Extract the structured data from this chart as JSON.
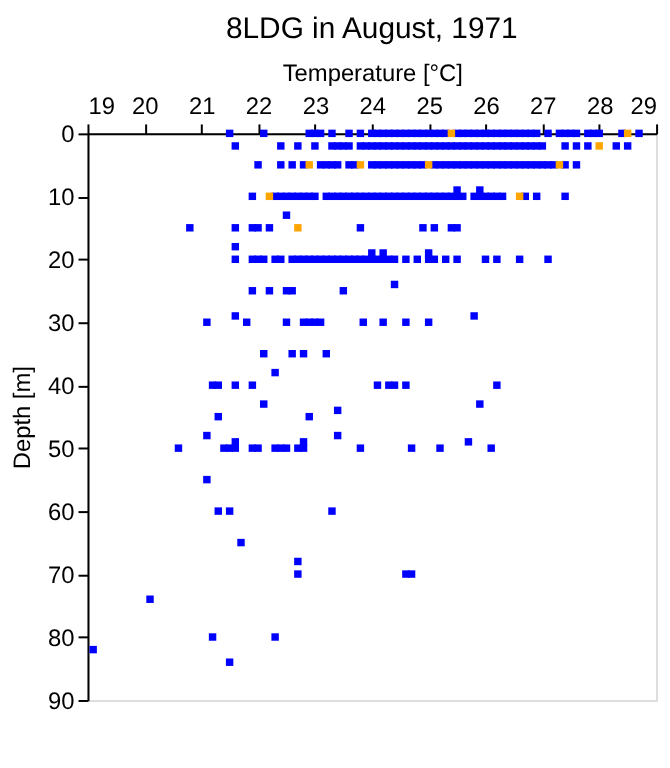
{
  "chart_data": {
    "type": "scatter",
    "title": "8LDG in August, 1971",
    "xlabel": "Temperature [°C]",
    "ylabel": "Depth [m]",
    "xlim": [
      19,
      29
    ],
    "xticks": [
      19,
      20,
      21,
      22,
      23,
      24,
      25,
      26,
      27,
      28,
      29
    ],
    "ylim": [
      90,
      0
    ],
    "yticks": [
      0,
      10,
      20,
      30,
      40,
      50,
      60,
      70,
      80,
      90
    ],
    "grid": false,
    "legend": false,
    "marker": "square",
    "series": [
      {
        "color": "#0000ff",
        "x": [
          21.5,
          22.1,
          22.9,
          23.0,
          23.1,
          23.3,
          23.6,
          23.8,
          24.0,
          24.1,
          24.2,
          24.3,
          24.4,
          24.5,
          24.6,
          24.7,
          24.8,
          24.9,
          25.0,
          25.1,
          25.2,
          25.3,
          25.5,
          25.6,
          25.7,
          25.8,
          25.9,
          26.0,
          26.1,
          26.2,
          26.3,
          26.4,
          26.5,
          26.6,
          26.7,
          26.8,
          26.9,
          27.1,
          27.3,
          27.4,
          27.5,
          27.6,
          27.8,
          27.9,
          28.0,
          28.4,
          28.7,
          21.6,
          22.4,
          22.7,
          23.0,
          23.3,
          23.4,
          23.5,
          23.6,
          23.8,
          23.9,
          24.0,
          24.1,
          24.2,
          24.3,
          24.4,
          24.5,
          24.6,
          24.7,
          24.8,
          24.9,
          25.0,
          25.1,
          25.2,
          25.3,
          25.4,
          25.5,
          25.6,
          25.7,
          25.8,
          25.9,
          26.0,
          26.1,
          26.2,
          26.3,
          26.4,
          26.5,
          26.6,
          26.7,
          26.8,
          26.9,
          27.0,
          27.4,
          27.6,
          27.8,
          28.3,
          28.5,
          22.0,
          22.4,
          22.6,
          22.8,
          23.1,
          23.2,
          23.3,
          23.4,
          23.6,
          23.7,
          24.0,
          24.1,
          24.2,
          24.3,
          24.4,
          24.5,
          24.6,
          24.7,
          24.8,
          24.9,
          25.1,
          25.2,
          25.3,
          25.4,
          25.5,
          25.6,
          25.7,
          25.8,
          25.9,
          26.0,
          26.1,
          26.2,
          26.3,
          26.4,
          26.5,
          26.6,
          26.7,
          26.8,
          26.9,
          27.0,
          27.1,
          27.2,
          27.4,
          27.6,
          25.5,
          25.9,
          21.9,
          22.3,
          22.4,
          22.5,
          22.6,
          22.7,
          22.8,
          22.9,
          23.0,
          23.2,
          23.3,
          23.4,
          23.5,
          23.6,
          23.7,
          23.8,
          23.9,
          24.0,
          24.1,
          24.2,
          24.3,
          24.4,
          24.5,
          24.6,
          24.7,
          24.8,
          24.9,
          25.0,
          25.1,
          25.2,
          25.3,
          25.4,
          25.5,
          25.6,
          25.8,
          25.9,
          26.0,
          26.1,
          26.2,
          26.3,
          26.7,
          26.9,
          27.4,
          22.5,
          20.8,
          21.6,
          21.9,
          22.0,
          22.2,
          23.8,
          24.9,
          25.1,
          25.4,
          25.5,
          21.6,
          24.0,
          24.2,
          25.0,
          21.6,
          21.9,
          22.0,
          22.1,
          22.3,
          22.4,
          22.6,
          22.7,
          22.8,
          22.9,
          23.0,
          23.1,
          23.2,
          23.3,
          23.4,
          23.5,
          23.6,
          23.7,
          23.8,
          23.9,
          24.0,
          24.1,
          24.2,
          24.3,
          24.4,
          24.6,
          24.8,
          25.0,
          25.1,
          25.3,
          25.5,
          26.0,
          26.2,
          26.6,
          27.1,
          24.4,
          21.9,
          22.2,
          22.5,
          22.6,
          23.5,
          21.6,
          25.8,
          21.1,
          21.8,
          22.5,
          22.8,
          22.9,
          23.0,
          23.1,
          23.85,
          24.2,
          24.6,
          25.0,
          22.1,
          22.6,
          22.8,
          23.2,
          22.3,
          21.2,
          21.3,
          21.6,
          21.9,
          24.1,
          24.3,
          24.4,
          24.6,
          26.2,
          22.1,
          25.9,
          23.4,
          21.3,
          22.9,
          21.1,
          23.4,
          21.6,
          22.8,
          25.7,
          20.6,
          21.4,
          21.5,
          21.6,
          21.9,
          22.0,
          22.3,
          22.4,
          22.5,
          22.7,
          22.8,
          23.8,
          24.7,
          25.2,
          26.1,
          21.1,
          21.3,
          21.5,
          23.3,
          21.7,
          22.7,
          22.7,
          24.6,
          24.7,
          20.1,
          21.2,
          22.3,
          19.1,
          21.5
        ],
        "values": [
          0,
          0,
          0,
          0,
          0,
          0,
          0,
          0,
          0,
          0,
          0,
          0,
          0,
          0,
          0,
          0,
          0,
          0,
          0,
          0,
          0,
          0,
          0,
          0,
          0,
          0,
          0,
          0,
          0,
          0,
          0,
          0,
          0,
          0,
          0,
          0,
          0,
          0,
          0,
          0,
          0,
          0,
          0,
          0,
          0,
          0,
          0,
          2,
          2,
          2,
          2,
          2,
          2,
          2,
          2,
          2,
          2,
          2,
          2,
          2,
          2,
          2,
          2,
          2,
          2,
          2,
          2,
          2,
          2,
          2,
          2,
          2,
          2,
          2,
          2,
          2,
          2,
          2,
          2,
          2,
          2,
          2,
          2,
          2,
          2,
          2,
          2,
          2,
          2,
          2,
          2,
          2,
          2,
          5,
          5,
          5,
          5,
          5,
          5,
          5,
          5,
          5,
          5,
          5,
          5,
          5,
          5,
          5,
          5,
          5,
          5,
          5,
          5,
          5,
          5,
          5,
          5,
          5,
          5,
          5,
          5,
          5,
          5,
          5,
          5,
          5,
          5,
          5,
          5,
          5,
          5,
          5,
          5,
          5,
          5,
          5,
          5,
          9,
          9,
          10,
          10,
          10,
          10,
          10,
          10,
          10,
          10,
          10,
          10,
          10,
          10,
          10,
          10,
          10,
          10,
          10,
          10,
          10,
          10,
          10,
          10,
          10,
          10,
          10,
          10,
          10,
          10,
          10,
          10,
          10,
          10,
          10,
          10,
          10,
          10,
          10,
          10,
          10,
          10,
          10,
          10,
          10,
          13,
          15,
          15,
          15,
          15,
          15,
          15,
          15,
          15,
          15,
          15,
          18,
          19,
          19,
          19,
          20,
          20,
          20,
          20,
          20,
          20,
          20,
          20,
          20,
          20,
          20,
          20,
          20,
          20,
          20,
          20,
          20,
          20,
          20,
          20,
          20,
          20,
          20,
          20,
          20,
          20,
          20,
          20,
          20,
          20,
          20,
          20,
          20,
          20,
          20,
          24,
          25,
          25,
          25,
          25,
          25,
          29,
          29,
          30,
          30,
          30,
          30,
          30,
          30,
          30,
          30,
          30,
          30,
          30,
          35,
          35,
          35,
          35,
          38,
          40,
          40,
          40,
          40,
          40,
          40,
          40,
          40,
          40,
          43,
          43,
          44,
          45,
          45,
          48,
          48,
          49,
          49,
          49,
          50,
          50,
          50,
          50,
          50,
          50,
          50,
          50,
          50,
          50,
          50,
          50,
          50,
          50,
          50,
          55,
          60,
          60,
          60,
          65,
          68,
          70,
          70,
          70,
          74,
          80,
          80,
          82,
          84
        ]
      },
      {
        "color": "#ffa500",
        "x": [
          25.4,
          28.5,
          28.0,
          22.9,
          23.8,
          25.0,
          27.3,
          22.2,
          26.6,
          22.7
        ],
        "values": [
          0,
          0,
          2,
          5,
          5,
          5,
          5,
          10,
          10,
          15
        ]
      }
    ]
  }
}
